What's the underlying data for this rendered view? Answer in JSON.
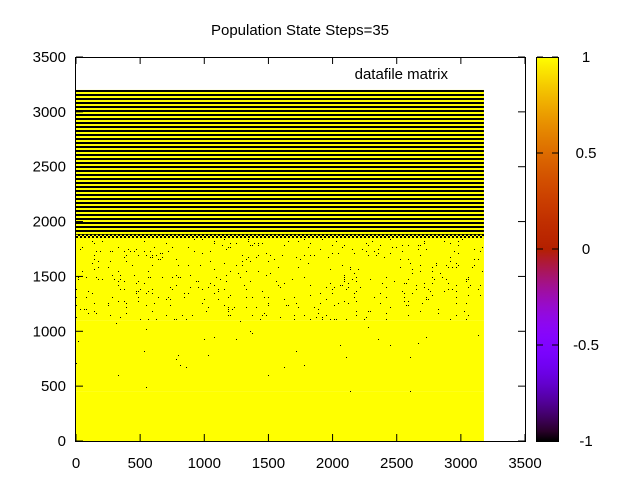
{
  "chart_data": {
    "type": "heatmap",
    "title": "Population State Steps=35",
    "xlabel": "",
    "ylabel": "",
    "legend": {
      "entries": [
        "datafile matrix"
      ],
      "position": "top-right"
    },
    "xlim": [
      0,
      3500
    ],
    "ylim": [
      0,
      3500
    ],
    "x_ticks": [
      0,
      500,
      1000,
      1500,
      2000,
      2500,
      3000,
      3500
    ],
    "y_ticks": [
      0,
      500,
      1000,
      1500,
      2000,
      2500,
      3000,
      3500
    ],
    "matrix_extent": {
      "x": [
        0,
        3180
      ],
      "y": [
        0,
        3200
      ]
    },
    "colorbar": {
      "range": [
        -1,
        1
      ],
      "ticks": [
        -1,
        -0.5,
        0,
        0.5,
        1
      ],
      "tick_labels": [
        "-1",
        "-0.5",
        "0",
        "0.5",
        "1"
      ],
      "palette": "gnuplot default (rgb 7,5,15)"
    },
    "regions": [
      {
        "name": "alternating-band",
        "y_range": [
          1860,
          3200
        ],
        "pattern": "alternating rows of -1 and 1"
      },
      {
        "name": "transition-boundary",
        "y_range": [
          1840,
          1880
        ],
        "pattern": "checkerboard of -1 and 1"
      },
      {
        "name": "sparse-defects",
        "y_range": [
          1100,
          1850
        ],
        "value": 1,
        "defect_value": -1,
        "defect_density": "medium"
      },
      {
        "name": "rare-defects",
        "y_range": [
          450,
          1100
        ],
        "value": 1,
        "defect_value": -1,
        "defect_density": "low"
      },
      {
        "name": "uniform",
        "y_range": [
          0,
          450
        ],
        "value": 1
      }
    ],
    "grid": false
  },
  "colors": {
    "high_value": "#ffff00",
    "low_value": "#000000",
    "background": "#ffffff",
    "axis": "#000000"
  }
}
